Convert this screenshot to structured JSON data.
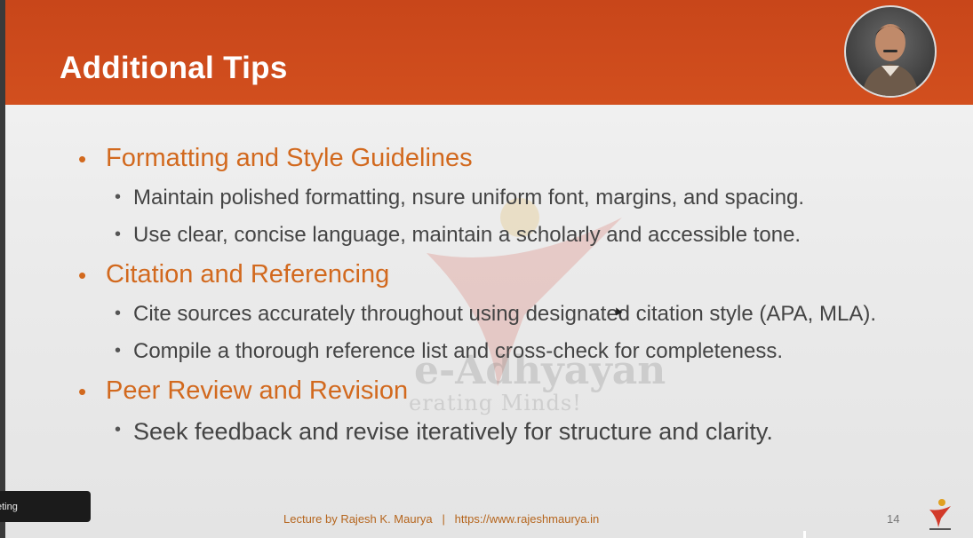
{
  "slide": {
    "title": "Additional Tips",
    "sections": [
      {
        "heading": "Formatting and Style Guidelines",
        "points": [
          "Maintain polished formatting, nsure uniform font, margins, and spacing.",
          "Use clear, concise language, maintain a scholarly and accessible tone."
        ]
      },
      {
        "heading": "Citation and Referencing",
        "points": [
          "Cite sources accurately throughout using designated citation style (APA, MLA).",
          "Compile a thorough reference list and cross-check for completeness."
        ]
      },
      {
        "heading": "Peer Review and Revision",
        "points": [
          "Seek feedback and revise iteratively for structure and clarity."
        ]
      }
    ],
    "bullet": "•",
    "footer": "Lecture by Rajesh K. Maurya   |   https://www.rajeshmaurya.in",
    "page_number": "14",
    "watermark_text": "e-Adhyayan",
    "watermark_sub": "erating Minds!"
  },
  "overlay": {
    "meeting_label": "eting"
  },
  "colors": {
    "header": "#d24f1e",
    "heading_text": "#d2691e",
    "body_text": "#444444"
  },
  "icons": {
    "avatar": "presenter-photo",
    "watermark": "e-adhyayan-logo",
    "footer_logo": "e-adhyayan-logo-small"
  }
}
